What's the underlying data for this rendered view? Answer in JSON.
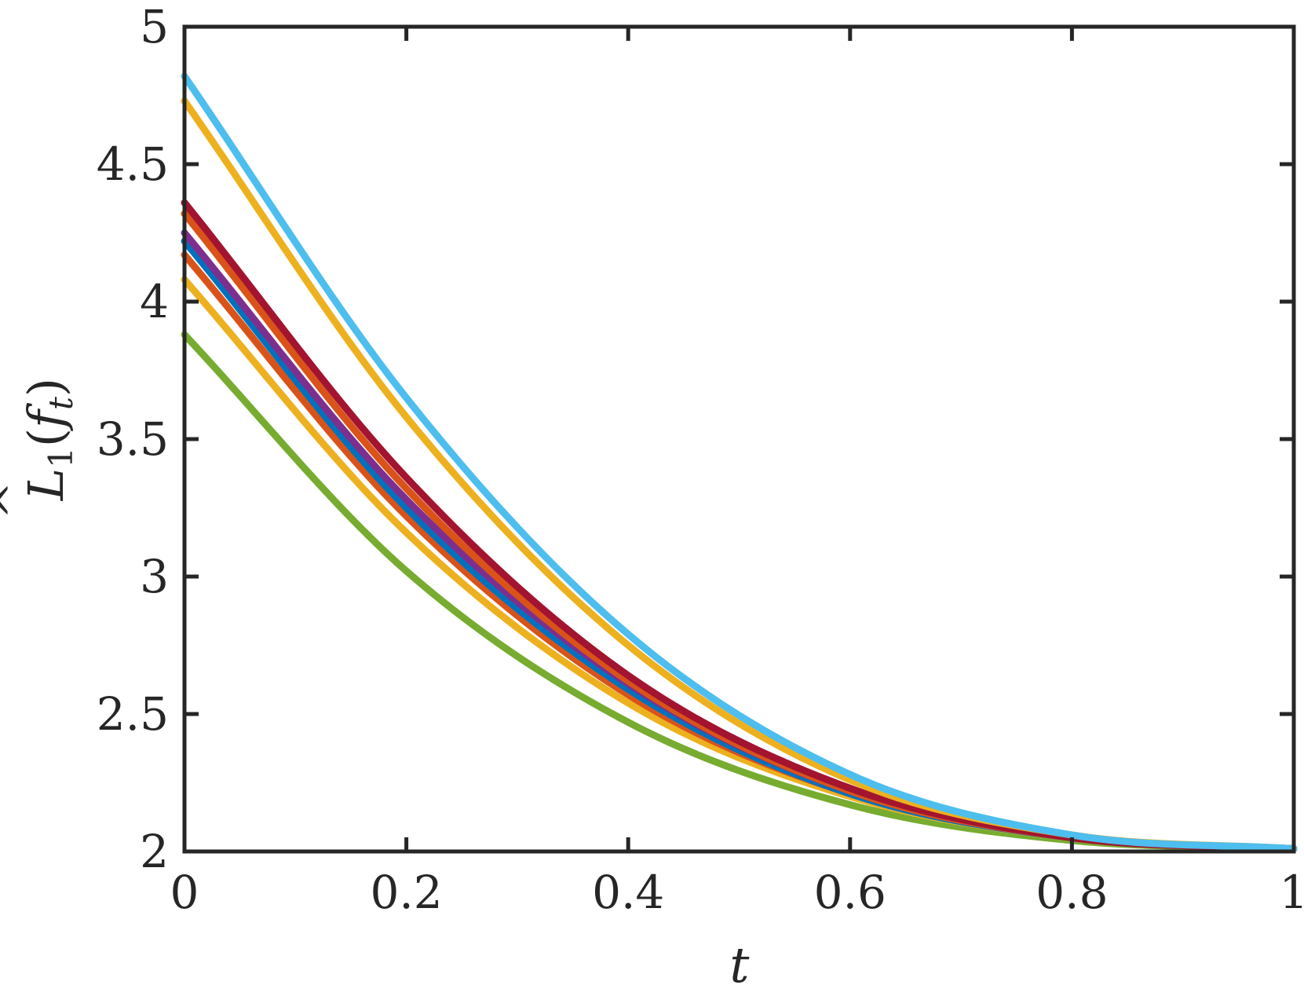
{
  "chart_data": {
    "type": "line",
    "title": "",
    "xlabel": "t",
    "ylabel": "L̂₁(f_t)",
    "ylabel_parts": {
      "main": "L",
      "hat": "^",
      "sub": "1",
      "open": "(",
      "arg": "f",
      "arg_sub": "t",
      "close": ")"
    },
    "xlim": [
      0,
      1
    ],
    "ylim": [
      2,
      5
    ],
    "xticks": [
      0,
      0.2,
      0.4,
      0.6,
      0.8,
      1
    ],
    "xtick_labels": [
      "0",
      "0.2",
      "0.4",
      "0.6",
      "0.8",
      "1"
    ],
    "yticks": [
      2,
      2.5,
      3,
      3.5,
      4,
      4.5,
      5
    ],
    "ytick_labels": [
      "2",
      "2.5",
      "3",
      "3.5",
      "4",
      "4.5",
      "5"
    ],
    "grid": false,
    "legend": "none",
    "series": [
      {
        "color": "#77AC30",
        "x": [
          0,
          0.2,
          0.4,
          0.6,
          0.8,
          1
        ],
        "values": [
          3.88,
          3.02,
          2.47,
          2.17,
          2.04,
          2.01
        ]
      },
      {
        "color": "#EDB120",
        "x": [
          0,
          0.2,
          0.4,
          0.6,
          0.8,
          1
        ],
        "values": [
          4.08,
          3.16,
          2.54,
          2.2,
          2.05,
          2.01
        ]
      },
      {
        "color": "#D95319",
        "x": [
          0,
          0.2,
          0.4,
          0.6,
          0.8,
          1
        ],
        "values": [
          4.17,
          3.22,
          2.57,
          2.21,
          2.05,
          2.01
        ]
      },
      {
        "color": "#0072BD",
        "x": [
          0,
          0.2,
          0.4,
          0.6,
          0.8,
          1
        ],
        "values": [
          4.22,
          3.25,
          2.59,
          2.21,
          2.05,
          2.01
        ]
      },
      {
        "color": "#7E2F8E",
        "x": [
          0,
          0.2,
          0.4,
          0.6,
          0.8,
          1
        ],
        "values": [
          4.25,
          3.28,
          2.61,
          2.22,
          2.05,
          2.01
        ]
      },
      {
        "color": "#D95319",
        "x": [
          0,
          0.2,
          0.4,
          0.6,
          0.8,
          1
        ],
        "values": [
          4.32,
          3.32,
          2.62,
          2.22,
          2.05,
          2.01
        ]
      },
      {
        "color": "#A2142F",
        "x": [
          0,
          0.2,
          0.4,
          0.6,
          0.8,
          1
        ],
        "values": [
          4.36,
          3.36,
          2.64,
          2.23,
          2.05,
          2.01
        ]
      },
      {
        "color": "#EDB120",
        "x": [
          0,
          0.2,
          0.4,
          0.6,
          0.8,
          1
        ],
        "values": [
          4.73,
          3.58,
          2.75,
          2.26,
          2.06,
          2.01
        ]
      },
      {
        "color": "#4DBEEE",
        "x": [
          0,
          0.2,
          0.4,
          0.6,
          0.8,
          1
        ],
        "values": [
          4.82,
          3.65,
          2.79,
          2.28,
          2.06,
          2.01
        ]
      }
    ]
  }
}
